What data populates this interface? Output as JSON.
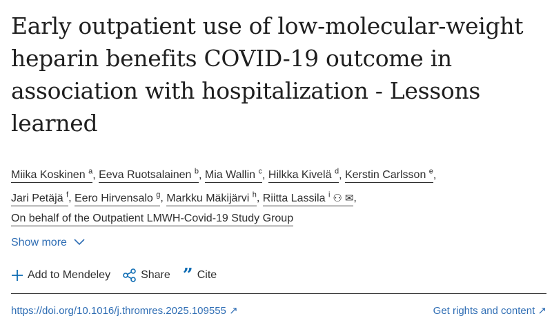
{
  "title": "Early outpatient use of low-molecular-weight heparin benefits COVID-19 outcome in association with hospitalization - Lessons learned",
  "authors": [
    {
      "name": "Miika Koskinen",
      "aff": "a"
    },
    {
      "name": "Eeva Ruotsalainen",
      "aff": "b"
    },
    {
      "name": "Mia Wallin",
      "aff": "c"
    },
    {
      "name": "Hilkka Kivelä",
      "aff": "d"
    },
    {
      "name": "Kerstin Carlsson",
      "aff": "e"
    },
    {
      "name": "Jari Petäjä",
      "aff": "f"
    },
    {
      "name": "Eero Hirvensalo",
      "aff": "g"
    },
    {
      "name": "Markku Mäkijärvi",
      "aff": "h"
    },
    {
      "name": "Riitta Lassila",
      "aff": "i"
    }
  ],
  "group": "On behalf of the Outpatient LMWH-Covid-19 Study Group",
  "show_more": "Show more",
  "actions": {
    "mendeley": "Add to Mendeley",
    "share": "Share",
    "cite": "Cite"
  },
  "doi": "https://doi.org/10.1016/j.thromres.2025.109555",
  "rights": "Get rights and content",
  "icons": {
    "person": "person-icon",
    "email": "envelope-icon",
    "chevron": "chevron-down-icon",
    "plus": "plus-icon",
    "share": "share-icon",
    "cite": "quote-icon",
    "external": "external-link-icon"
  },
  "colors": {
    "link": "#2e6db4",
    "icon": "#0c6bb3",
    "text": "#2e2e2e"
  }
}
